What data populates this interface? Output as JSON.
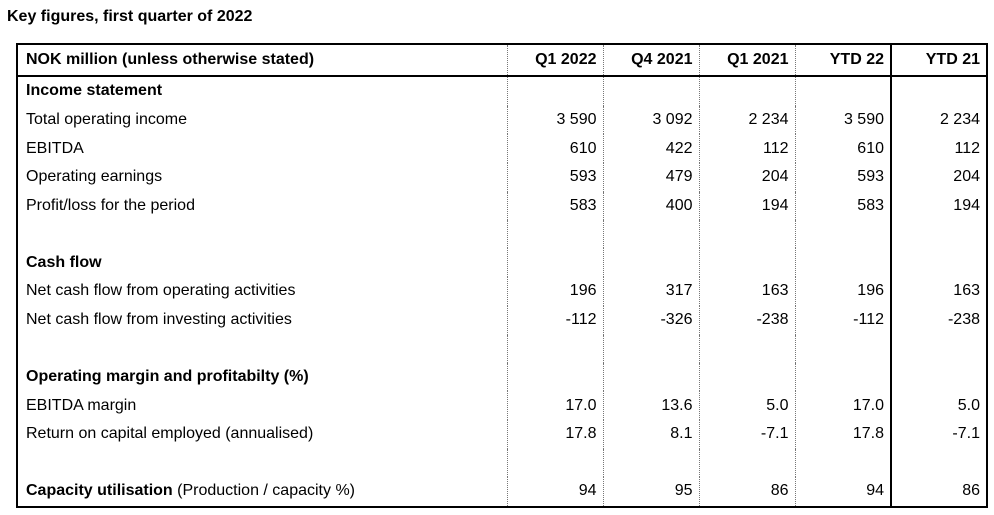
{
  "title": "Key figures, first quarter of 2022",
  "table": {
    "header": {
      "label": "NOK million (unless otherwise stated)",
      "columns": [
        "Q1 2022",
        "Q4 2021",
        "Q1 2021",
        "YTD 22",
        "YTD 21"
      ]
    },
    "income_statement": {
      "heading": "Income statement",
      "rows": [
        {
          "label": "Total operating income",
          "values": [
            "3 590",
            "3 092",
            "2 234",
            "3 590",
            "2 234"
          ]
        },
        {
          "label": "EBITDA",
          "values": [
            "610",
            "422",
            "112",
            "610",
            "112"
          ]
        },
        {
          "label": "Operating earnings",
          "values": [
            "593",
            "479",
            "204",
            "593",
            "204"
          ]
        },
        {
          "label": "Profit/loss for the period",
          "values": [
            "583",
            "400",
            "194",
            "583",
            "194"
          ]
        }
      ]
    },
    "cash_flow": {
      "heading": "Cash flow",
      "rows": [
        {
          "label": "Net cash flow from operating activities",
          "values": [
            "196",
            "317",
            "163",
            "196",
            "163"
          ]
        },
        {
          "label": "Net cash flow from investing activities",
          "values": [
            "-112",
            "-326",
            "-238",
            "-112",
            "-238"
          ]
        }
      ]
    },
    "margin": {
      "heading": "Operating margin and profitabilty (%)",
      "rows": [
        {
          "label": "EBITDA margin",
          "values": [
            "17.0",
            "13.6",
            "5.0",
            "17.0",
            "5.0"
          ]
        },
        {
          "label": "Return on capital employed (annualised)",
          "values": [
            "17.8",
            "8.1",
            "-7.1",
            "17.8",
            "-7.1"
          ]
        }
      ]
    },
    "capacity": {
      "label_bold": "Capacity utilisation",
      "label_rest": " (Production / capacity %)",
      "values": [
        "94",
        "95",
        "86",
        "94",
        "86"
      ]
    }
  }
}
